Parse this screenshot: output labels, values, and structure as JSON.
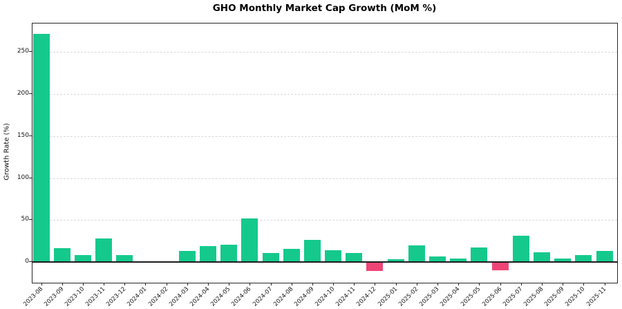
{
  "chart_data": {
    "type": "bar",
    "title": "GHO Monthly Market Cap Growth (MoM %)",
    "xlabel": "",
    "ylabel": "Growth Rate (%)",
    "categories": [
      "2023-08",
      "2023-09",
      "2023-10",
      "2023-11",
      "2023-12",
      "2024-01",
      "2024-02",
      "2024-03",
      "2024-04",
      "2024-05",
      "2024-06",
      "2024-07",
      "2024-08",
      "2024-09",
      "2024-10",
      "2024-11",
      "2024-12",
      "2025-01",
      "2025-02",
      "2025-03",
      "2025-04",
      "2025-05",
      "2025-06",
      "2025-07",
      "2025-08",
      "2025-09",
      "2025-10",
      "2025-11"
    ],
    "values": [
      271.2,
      17.0,
      8.2,
      28.6,
      8.7,
      0.1,
      0.4,
      13.3,
      18.8,
      20.9,
      51.6,
      11.2,
      16.1,
      26.2,
      14.1,
      11.2,
      -10.4,
      3.5,
      19.6,
      6.8,
      4.3,
      17.2,
      -9.6,
      31.9,
      11.7,
      4.7,
      8.4,
      13.3
    ],
    "yticks": [
      0,
      50,
      100,
      150,
      200,
      250
    ],
    "ylim": [
      -24.3,
      283.4
    ],
    "grid": true,
    "legend_position": "none",
    "positive_color": "#15C98C",
    "negative_color": "#EF4576",
    "zero_line_color": "#1c1c1c",
    "gridline_color": "#d9d9d9"
  }
}
